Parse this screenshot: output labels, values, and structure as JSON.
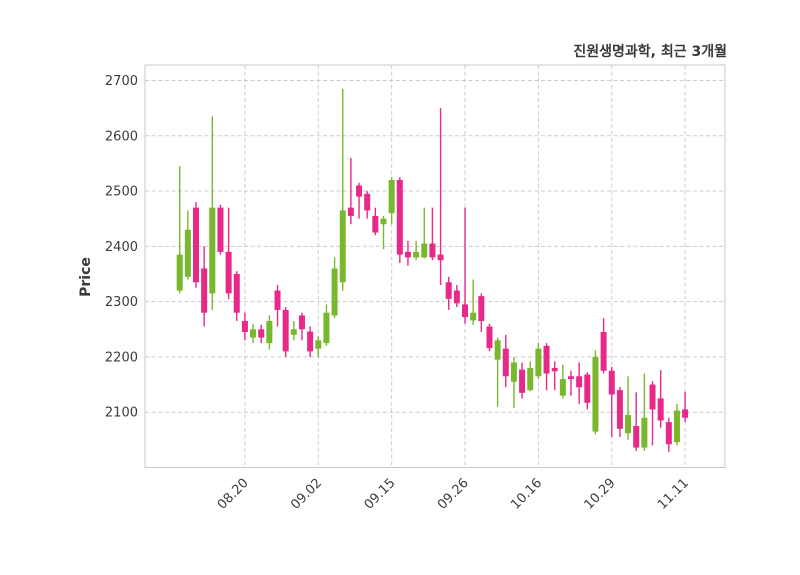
{
  "figure": {
    "title": "진원생명과학, 최근 3개월",
    "ylabel": "Price"
  },
  "chart_data": {
    "type": "candlestick",
    "title": "진원생명과학, 최근 3개월",
    "xlabel": "",
    "ylabel": "Price",
    "grid": true,
    "legend": "none",
    "ylim": [
      2000,
      2728
    ],
    "y_ticks": [
      2100,
      2200,
      2300,
      2400,
      2500,
      2600,
      2700
    ],
    "x_tick_indices": [
      8,
      17,
      26,
      35,
      44,
      53,
      62
    ],
    "x_tick_labels": [
      "08.20",
      "09.02",
      "09.15",
      "09.26",
      "10.16",
      "10.29",
      "11.11"
    ],
    "up_color": "#78B82D",
    "down_color": "#E7298A",
    "grid_color": "#cccccc",
    "spine_color": "#c8c8c8",
    "text_color": "#3c3c3c",
    "ohlc_order": [
      "open",
      "high",
      "low",
      "close"
    ],
    "ohlc": [
      [
        2320,
        2545,
        2315,
        2385
      ],
      [
        2345,
        2465,
        2340,
        2430
      ],
      [
        2470,
        2480,
        2325,
        2335
      ],
      [
        2360,
        2400,
        2255,
        2280
      ],
      [
        2315,
        2635,
        2285,
        2470
      ],
      [
        2470,
        2475,
        2385,
        2390
      ],
      [
        2390,
        2470,
        2305,
        2315
      ],
      [
        2350,
        2355,
        2265,
        2280
      ],
      [
        2265,
        2280,
        2230,
        2245
      ],
      [
        2235,
        2260,
        2225,
        2250
      ],
      [
        2250,
        2258,
        2225,
        2235
      ],
      [
        2225,
        2275,
        2213,
        2265
      ],
      [
        2320,
        2330,
        2255,
        2285
      ],
      [
        2285,
        2290,
        2200,
        2210
      ],
      [
        2240,
        2265,
        2230,
        2250
      ],
      [
        2275,
        2280,
        2230,
        2250
      ],
      [
        2246,
        2255,
        2200,
        2210
      ],
      [
        2215,
        2237,
        2200,
        2230
      ],
      [
        2225,
        2295,
        2220,
        2280
      ],
      [
        2275,
        2380,
        2270,
        2360
      ],
      [
        2335,
        2685,
        2320,
        2465
      ],
      [
        2470,
        2560,
        2440,
        2455
      ],
      [
        2510,
        2515,
        2450,
        2490
      ],
      [
        2495,
        2500,
        2450,
        2465
      ],
      [
        2455,
        2470,
        2420,
        2425
      ],
      [
        2440,
        2455,
        2395,
        2450
      ],
      [
        2460,
        2525,
        2440,
        2520
      ],
      [
        2520,
        2525,
        2370,
        2385
      ],
      [
        2390,
        2410,
        2365,
        2380
      ],
      [
        2380,
        2410,
        2375,
        2390
      ],
      [
        2380,
        2470,
        2378,
        2405
      ],
      [
        2405,
        2470,
        2375,
        2380
      ],
      [
        2385,
        2650,
        2330,
        2375
      ],
      [
        2335,
        2345,
        2285,
        2305
      ],
      [
        2320,
        2330,
        2290,
        2297
      ],
      [
        2295,
        2470,
        2260,
        2272
      ],
      [
        2266,
        2340,
        2258,
        2280
      ],
      [
        2310,
        2315,
        2245,
        2265
      ],
      [
        2255,
        2260,
        2210,
        2216
      ],
      [
        2195,
        2235,
        2110,
        2230
      ],
      [
        2215,
        2240,
        2145,
        2165
      ],
      [
        2155,
        2200,
        2108,
        2190
      ],
      [
        2177,
        2190,
        2125,
        2135
      ],
      [
        2140,
        2192,
        2138,
        2180
      ],
      [
        2165,
        2225,
        2160,
        2215
      ],
      [
        2220,
        2225,
        2140,
        2170
      ],
      [
        2180,
        2192,
        2140,
        2174
      ],
      [
        2130,
        2186,
        2125,
        2160
      ],
      [
        2165,
        2175,
        2130,
        2160
      ],
      [
        2165,
        2190,
        2115,
        2145
      ],
      [
        2168,
        2172,
        2105,
        2117
      ],
      [
        2065,
        2212,
        2060,
        2200
      ],
      [
        2245,
        2270,
        2170,
        2175
      ],
      [
        2175,
        2182,
        2055,
        2132
      ],
      [
        2140,
        2146,
        2055,
        2070
      ],
      [
        2062,
        2165,
        2050,
        2095
      ],
      [
        2075,
        2136,
        2030,
        2036
      ],
      [
        2036,
        2170,
        2030,
        2090
      ],
      [
        2150,
        2156,
        2040,
        2105
      ],
      [
        2125,
        2176,
        2072,
        2085
      ],
      [
        2082,
        2090,
        2028,
        2042
      ],
      [
        2046,
        2115,
        2040,
        2103
      ],
      [
        2105,
        2137,
        2082,
        2090
      ]
    ]
  }
}
